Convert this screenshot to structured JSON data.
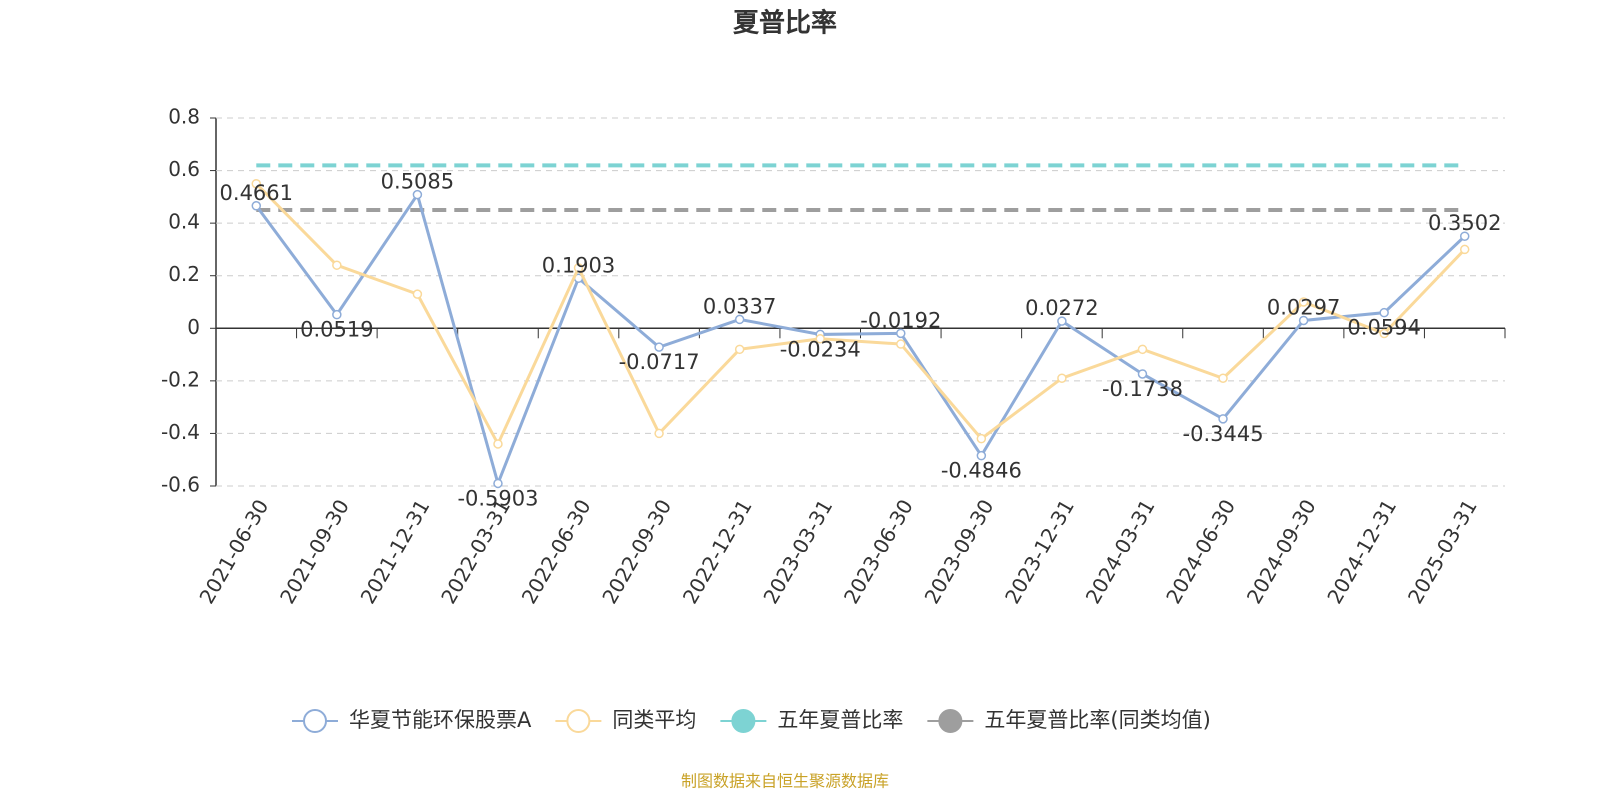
{
  "chart_data": {
    "type": "line",
    "title": "夏普比率",
    "categories": [
      "2021-06-30",
      "2021-09-30",
      "2021-12-31",
      "2022-03-31",
      "2022-06-30",
      "2022-09-30",
      "2022-12-31",
      "2023-03-31",
      "2023-06-30",
      "2023-09-30",
      "2023-12-31",
      "2024-03-31",
      "2024-06-30",
      "2024-09-30",
      "2024-12-31",
      "2025-03-31"
    ],
    "series": [
      {
        "name": "华夏节能环保股票A",
        "color": "#8eacd8",
        "values": [
          0.4661,
          0.0519,
          0.5085,
          -0.5903,
          0.1903,
          -0.0717,
          0.0337,
          -0.0234,
          -0.0192,
          -0.4846,
          0.0272,
          -0.1738,
          -0.3445,
          0.0297,
          0.0594,
          0.3502
        ],
        "labels": true
      },
      {
        "name": "同类平均",
        "color": "#fad99a",
        "values": [
          0.55,
          0.24,
          0.13,
          -0.44,
          0.23,
          -0.4,
          -0.08,
          -0.04,
          -0.06,
          -0.42,
          -0.19,
          -0.08,
          -0.19,
          0.1,
          -0.02,
          0.3
        ],
        "labels": false
      }
    ],
    "hlines": [
      {
        "name": "五年夏普比率",
        "color": "#7dd3d3",
        "value": 0.62
      },
      {
        "name": "五年夏普比率(同类均值)",
        "color": "#9e9e9e",
        "value": 0.45
      }
    ],
    "ylim": [
      -0.6,
      0.8
    ],
    "yticks": [
      -0.6,
      -0.4,
      -0.2,
      0,
      0.2,
      0.4,
      0.6,
      0.8
    ],
    "grid": true,
    "source": "制图数据来自恒生聚源数据库"
  }
}
